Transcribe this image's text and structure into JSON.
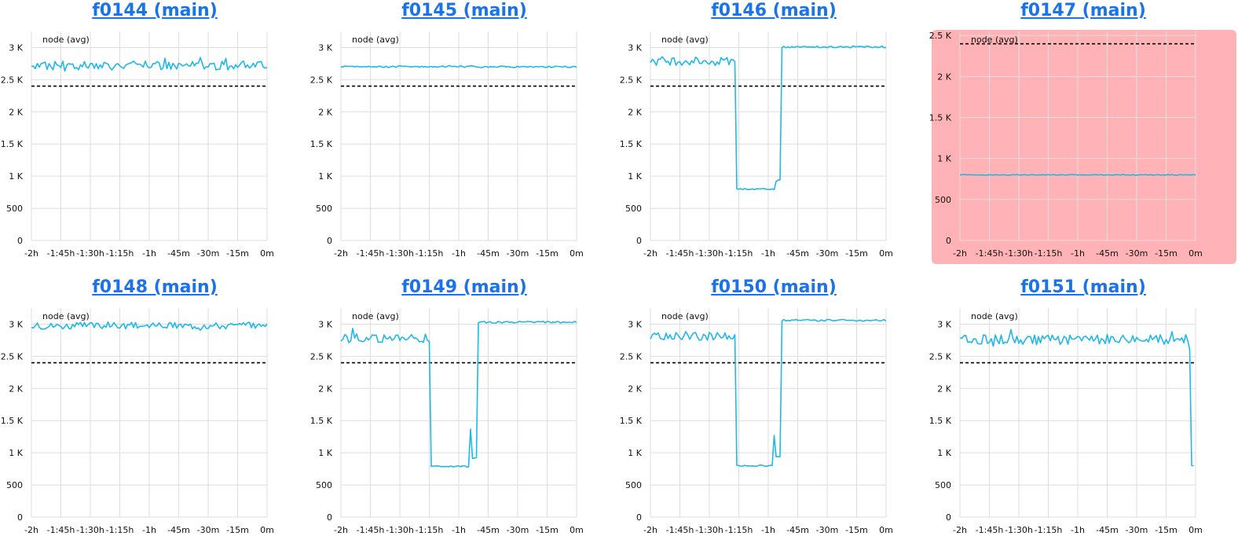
{
  "dashboard": {
    "colors": {
      "series": "#1fb8ea",
      "threshold": "#000000",
      "grid": "#dddddd",
      "alert_background": "#ffb3b6",
      "title_link": "#1a73e8"
    }
  },
  "chart_data": [
    {
      "title": "f0144 (main)",
      "type": "line",
      "legend": "node (avg)",
      "alert": false,
      "x_ticks": [
        "-2h",
        "-1:45h",
        "-1:30h",
        "-1:15h",
        "-1h",
        "-45m",
        "-30m",
        "-15m",
        "0m"
      ],
      "y_ticks": [
        "0",
        "500",
        "1 K",
        "1.5 K",
        "2 K",
        "2.5 K",
        "3 K"
      ],
      "ylim": [
        0,
        3250
      ],
      "threshold": 2400,
      "series_end_min": 0,
      "pattern": "noisy",
      "base": 2720,
      "noise": 70
    },
    {
      "title": "f0145 (main)",
      "type": "line",
      "legend": "node (avg)",
      "alert": false,
      "x_ticks": [
        "-2h",
        "-1:45h",
        "-1:30h",
        "-1:15h",
        "-1h",
        "-45m",
        "-30m",
        "-15m",
        "0m"
      ],
      "y_ticks": [
        "0",
        "500",
        "1 K",
        "1.5 K",
        "2 K",
        "2.5 K",
        "3 K"
      ],
      "ylim": [
        0,
        3250
      ],
      "threshold": 2400,
      "series_end_min": 0,
      "pattern": "flat",
      "base": 2700,
      "noise": 12
    },
    {
      "title": "f0146 (main)",
      "type": "line",
      "legend": "node (avg)",
      "alert": false,
      "x_ticks": [
        "-2h",
        "-1:45h",
        "-1:30h",
        "-1:15h",
        "-1h",
        "-45m",
        "-30m",
        "-15m",
        "0m"
      ],
      "y_ticks": [
        "0",
        "500",
        "1 K",
        "1.5 K",
        "2 K",
        "2.5 K",
        "3 K"
      ],
      "ylim": [
        0,
        3250
      ],
      "threshold": 2400,
      "series_end_min": 0,
      "pattern": "dip",
      "base": 2790,
      "noise": 70,
      "low": 800,
      "dip_start_min": -76,
      "dip_end_min": -53,
      "after": 3010
    },
    {
      "title": "f0147 (main)",
      "type": "line",
      "legend": "node (avg)",
      "alert": true,
      "x_ticks": [
        "-2h",
        "-1:45h",
        "-1:30h",
        "-1:15h",
        "-1h",
        "-45m",
        "-30m",
        "-15m",
        "0m"
      ],
      "y_ticks": [
        "0",
        "500",
        "1 K",
        "1.5 K",
        "2 K",
        "2.5 K"
      ],
      "ylim": [
        0,
        2550
      ],
      "threshold": 2400,
      "series_end_min": 0,
      "pattern": "flat",
      "base": 800,
      "noise": 4
    },
    {
      "title": "f0148 (main)",
      "type": "line",
      "legend": "node (avg)",
      "alert": false,
      "x_ticks": [
        "-2h",
        "-1:45h",
        "-1:30h",
        "-1:15h",
        "-1h",
        "-45m",
        "-30m",
        "-15m",
        "0m"
      ],
      "y_ticks": [
        "0",
        "500",
        "1 K",
        "1.5 K",
        "2 K",
        "2.5 K",
        "3 K"
      ],
      "ylim": [
        0,
        3250
      ],
      "threshold": 2400,
      "series_end_min": 0,
      "pattern": "noisy",
      "base": 2980,
      "noise": 55
    },
    {
      "title": "f0149 (main)",
      "type": "line",
      "legend": "node (avg)",
      "alert": false,
      "x_ticks": [
        "-2h",
        "-1:45h",
        "-1:30h",
        "-1:15h",
        "-1h",
        "-45m",
        "-30m",
        "-15m",
        "0m"
      ],
      "y_ticks": [
        "0",
        "500",
        "1 K",
        "1.5 K",
        "2 K",
        "2.5 K",
        "3 K"
      ],
      "ylim": [
        0,
        3250
      ],
      "threshold": 2400,
      "series_end_min": 0,
      "pattern": "dip",
      "base": 2780,
      "noise": 70,
      "low": 790,
      "dip_start_min": -74,
      "dip_end_min": -50,
      "after": 3030,
      "spike": 1370
    },
    {
      "title": "f0150 (main)",
      "type": "line",
      "legend": "node (avg)",
      "alert": false,
      "x_ticks": [
        "-2h",
        "-1:45h",
        "-1:30h",
        "-1:15h",
        "-1h",
        "-45m",
        "-30m",
        "-15m",
        "0m"
      ],
      "y_ticks": [
        "0",
        "500",
        "1 K",
        "1.5 K",
        "2 K",
        "2.5 K",
        "3 K"
      ],
      "ylim": [
        0,
        3250
      ],
      "threshold": 2400,
      "series_end_min": 0,
      "pattern": "dip",
      "base": 2820,
      "noise": 70,
      "low": 800,
      "dip_start_min": -76,
      "dip_end_min": -53,
      "after": 3060,
      "spike": 1270
    },
    {
      "title": "f0151 (main)",
      "type": "line",
      "legend": "node (avg)",
      "alert": false,
      "x_ticks": [
        "-2h",
        "-1:45h",
        "-1:30h",
        "-1:15h",
        "-1h",
        "-45m",
        "-30m",
        "-15m",
        "0m"
      ],
      "y_ticks": [
        "0",
        "500",
        "1 K",
        "1.5 K",
        "2 K",
        "2.5 K",
        "3 K"
      ],
      "ylim": [
        0,
        3250
      ],
      "threshold": 2400,
      "series_end_min": -1,
      "pattern": "drop_end",
      "base": 2760,
      "noise": 75,
      "low": 800,
      "drop_min": -3
    }
  ]
}
